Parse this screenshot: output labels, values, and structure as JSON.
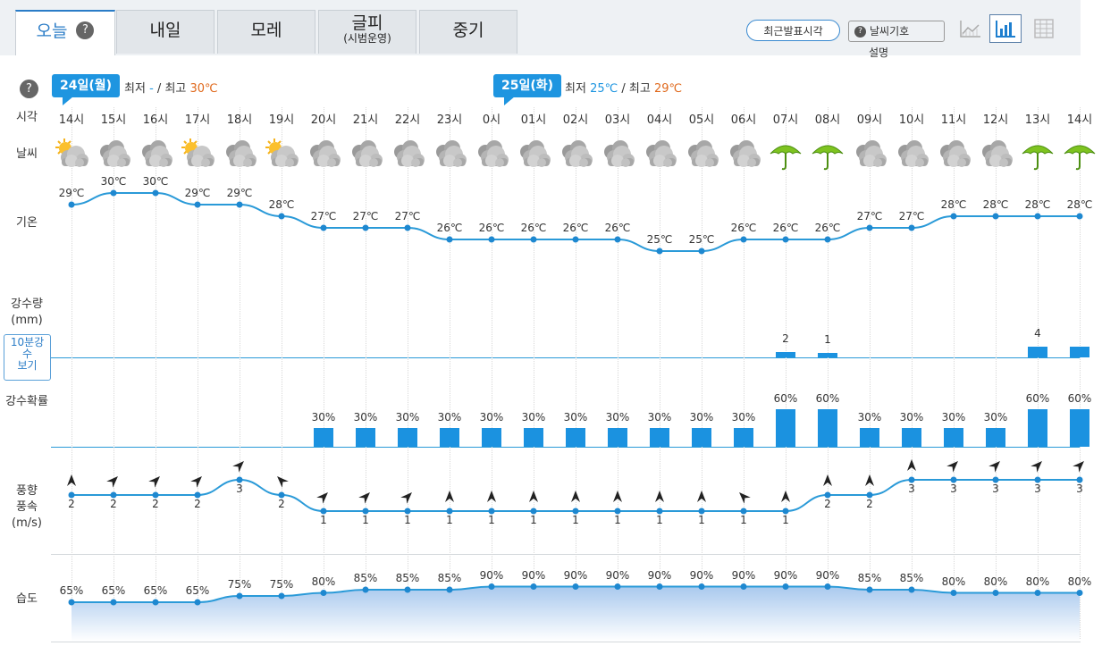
{
  "tabs": [
    {
      "label": "오늘",
      "sub": "",
      "help": "?"
    },
    {
      "label": "내일",
      "sub": ""
    },
    {
      "label": "모레",
      "sub": ""
    },
    {
      "label": "글피",
      "sub": "(시범운영)"
    },
    {
      "label": "중기",
      "sub": ""
    }
  ],
  "toolbar": {
    "recent_label": "최근발표시각",
    "legend_label": "날씨기호",
    "legend_help": "?",
    "legend_sub": "설명"
  },
  "left_help": "?",
  "days": [
    {
      "flag": "24일(월)",
      "min_label": "최저",
      "min_value": "-",
      "max_label": "최고",
      "max_value": "30℃",
      "sep": "/"
    },
    {
      "flag": "25일(화)",
      "min_label": "최저",
      "min_value": "25℃",
      "max_label": "최고",
      "max_value": "29℃",
      "sep": "/"
    }
  ],
  "row_labels": {
    "time": "시각",
    "weather": "날씨",
    "temp": "기온",
    "precip_amount_1": "강수량",
    "precip_amount_2": "(mm)",
    "btn10_1": "10분강",
    "btn10_2": "수",
    "btn10_3": "보기",
    "precip_prob": "강수확률",
    "wind_1": "풍향",
    "wind_2": "풍속",
    "wind_3": "(m/s)",
    "humidity": "습도"
  },
  "colors": {
    "accent": "#1e95e0",
    "max": "#e06a1e",
    "line": "#2a9ad8"
  },
  "hours": [
    {
      "h": "14시",
      "sky": "partly-cloudy",
      "temp": "29℃",
      "t": 29,
      "rain": "",
      "r": 0,
      "prob": "",
      "p": 0,
      "wd": "N",
      "ws": "2",
      "w": 2,
      "hum": "65%",
      "hu": 65
    },
    {
      "h": "15시",
      "sky": "cloudy",
      "temp": "30℃",
      "t": 30,
      "rain": "",
      "r": 0,
      "prob": "",
      "p": 0,
      "wd": "NE",
      "ws": "2",
      "w": 2,
      "hum": "65%",
      "hu": 65
    },
    {
      "h": "16시",
      "sky": "cloudy",
      "temp": "30℃",
      "t": 30,
      "rain": "",
      "r": 0,
      "prob": "",
      "p": 0,
      "wd": "NE",
      "ws": "2",
      "w": 2,
      "hum": "65%",
      "hu": 65
    },
    {
      "h": "17시",
      "sky": "partly-cloudy",
      "temp": "29℃",
      "t": 29,
      "rain": "",
      "r": 0,
      "prob": "",
      "p": 0,
      "wd": "NE",
      "ws": "2",
      "w": 2,
      "hum": "65%",
      "hu": 65
    },
    {
      "h": "18시",
      "sky": "cloudy",
      "temp": "29℃",
      "t": 29,
      "rain": "",
      "r": 0,
      "prob": "",
      "p": 0,
      "wd": "NE",
      "ws": "3",
      "w": 3,
      "hum": "75%",
      "hu": 75
    },
    {
      "h": "19시",
      "sky": "partly-cloudy",
      "temp": "28℃",
      "t": 28,
      "rain": "",
      "r": 0,
      "prob": "",
      "p": 0,
      "wd": "NW",
      "ws": "2",
      "w": 2,
      "hum": "75%",
      "hu": 75
    },
    {
      "h": "20시",
      "sky": "cloudy",
      "temp": "27℃",
      "t": 27,
      "rain": "",
      "r": 0,
      "prob": "30%",
      "p": 30,
      "wd": "NE",
      "ws": "1",
      "w": 1,
      "hum": "80%",
      "hu": 80
    },
    {
      "h": "21시",
      "sky": "cloudy",
      "temp": "27℃",
      "t": 27,
      "rain": "",
      "r": 0,
      "prob": "30%",
      "p": 30,
      "wd": "NE",
      "ws": "1",
      "w": 1,
      "hum": "85%",
      "hu": 85
    },
    {
      "h": "22시",
      "sky": "cloudy",
      "temp": "27℃",
      "t": 27,
      "rain": "",
      "r": 0,
      "prob": "30%",
      "p": 30,
      "wd": "NE",
      "ws": "1",
      "w": 1,
      "hum": "85%",
      "hu": 85
    },
    {
      "h": "23시",
      "sky": "cloudy",
      "temp": "26℃",
      "t": 26,
      "rain": "",
      "r": 0,
      "prob": "30%",
      "p": 30,
      "wd": "N",
      "ws": "1",
      "w": 1,
      "hum": "85%",
      "hu": 85
    },
    {
      "h": "0시",
      "sky": "cloudy",
      "temp": "26℃",
      "t": 26,
      "rain": "",
      "r": 0,
      "prob": "30%",
      "p": 30,
      "wd": "N",
      "ws": "1",
      "w": 1,
      "hum": "90%",
      "hu": 90
    },
    {
      "h": "01시",
      "sky": "cloudy",
      "temp": "26℃",
      "t": 26,
      "rain": "",
      "r": 0,
      "prob": "30%",
      "p": 30,
      "wd": "N",
      "ws": "1",
      "w": 1,
      "hum": "90%",
      "hu": 90
    },
    {
      "h": "02시",
      "sky": "cloudy",
      "temp": "26℃",
      "t": 26,
      "rain": "",
      "r": 0,
      "prob": "30%",
      "p": 30,
      "wd": "N",
      "ws": "1",
      "w": 1,
      "hum": "90%",
      "hu": 90
    },
    {
      "h": "03시",
      "sky": "cloudy",
      "temp": "26℃",
      "t": 26,
      "rain": "",
      "r": 0,
      "prob": "30%",
      "p": 30,
      "wd": "N",
      "ws": "1",
      "w": 1,
      "hum": "90%",
      "hu": 90
    },
    {
      "h": "04시",
      "sky": "cloudy",
      "temp": "25℃",
      "t": 25,
      "rain": "",
      "r": 0,
      "prob": "30%",
      "p": 30,
      "wd": "N",
      "ws": "1",
      "w": 1,
      "hum": "90%",
      "hu": 90
    },
    {
      "h": "05시",
      "sky": "cloudy",
      "temp": "25℃",
      "t": 25,
      "rain": "",
      "r": 0,
      "prob": "30%",
      "p": 30,
      "wd": "N",
      "ws": "1",
      "w": 1,
      "hum": "90%",
      "hu": 90
    },
    {
      "h": "06시",
      "sky": "cloudy",
      "temp": "26℃",
      "t": 26,
      "rain": "",
      "r": 0,
      "prob": "30%",
      "p": 30,
      "wd": "NW",
      "ws": "1",
      "w": 1,
      "hum": "90%",
      "hu": 90
    },
    {
      "h": "07시",
      "sky": "rain",
      "temp": "26℃",
      "t": 26,
      "rain": "2",
      "r": 2,
      "prob": "60%",
      "p": 60,
      "wd": "N",
      "ws": "1",
      "w": 1,
      "hum": "90%",
      "hu": 90
    },
    {
      "h": "08시",
      "sky": "rain",
      "temp": "26℃",
      "t": 26,
      "rain": "1",
      "r": 1,
      "prob": "60%",
      "p": 60,
      "wd": "N",
      "ws": "2",
      "w": 2,
      "hum": "90%",
      "hu": 90
    },
    {
      "h": "09시",
      "sky": "cloudy",
      "temp": "27℃",
      "t": 27,
      "rain": "",
      "r": 0,
      "prob": "30%",
      "p": 30,
      "wd": "N",
      "ws": "2",
      "w": 2,
      "hum": "85%",
      "hu": 85
    },
    {
      "h": "10시",
      "sky": "cloudy",
      "temp": "27℃",
      "t": 27,
      "rain": "",
      "r": 0,
      "prob": "30%",
      "p": 30,
      "wd": "N",
      "ws": "3",
      "w": 3,
      "hum": "85%",
      "hu": 85
    },
    {
      "h": "11시",
      "sky": "cloudy",
      "temp": "28℃",
      "t": 28,
      "rain": "",
      "r": 0,
      "prob": "30%",
      "p": 30,
      "wd": "NE",
      "ws": "3",
      "w": 3,
      "hum": "80%",
      "hu": 80
    },
    {
      "h": "12시",
      "sky": "cloudy",
      "temp": "28℃",
      "t": 28,
      "rain": "",
      "r": 0,
      "prob": "30%",
      "p": 30,
      "wd": "NE",
      "ws": "3",
      "w": 3,
      "hum": "80%",
      "hu": 80
    },
    {
      "h": "13시",
      "sky": "rain",
      "temp": "28℃",
      "t": 28,
      "rain": "4",
      "r": 4,
      "prob": "60%",
      "p": 60,
      "wd": "NE",
      "ws": "3",
      "w": 3,
      "hum": "80%",
      "hu": 80
    },
    {
      "h": "14시",
      "sky": "rain",
      "temp": "28℃",
      "t": 28,
      "rain": "",
      "r": 4,
      "prob": "60%",
      "p": 60,
      "wd": "NE",
      "ws": "3",
      "w": 3,
      "hum": "80%",
      "hu": 80
    }
  ]
}
